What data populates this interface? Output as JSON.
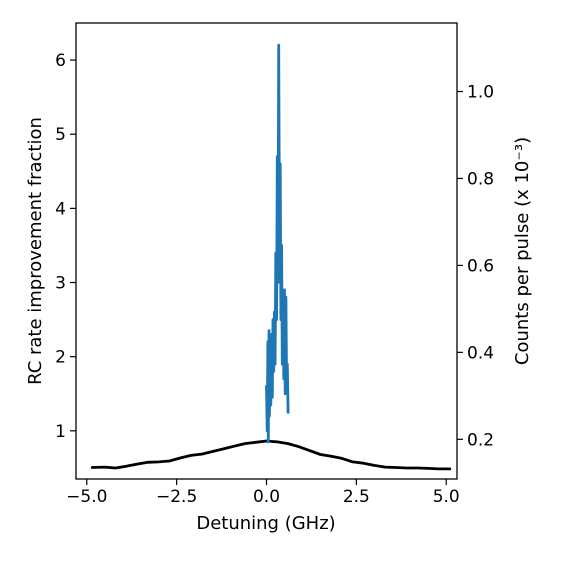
{
  "chart_data": {
    "type": "line",
    "xlabel": "Detuning (GHz)",
    "ylabel_left": "RC rate improvement fraction",
    "ylabel_right": "Counts per pulse (x 10⁻³)",
    "xlim": [
      -5.3,
      5.3
    ],
    "ylim_left": [
      0.35,
      6.5
    ],
    "ylim_right": [
      0.10866,
      1.1576
    ],
    "x_ticks": [
      -5.0,
      -2.5,
      0.0,
      2.5,
      5.0
    ],
    "x_tick_labels": [
      "−5.0",
      "−2.5",
      "0.0",
      "2.5",
      "5.0"
    ],
    "y_left_ticks": [
      1,
      2,
      3,
      4,
      5,
      6
    ],
    "y_left_tick_labels": [
      "1",
      "2",
      "3",
      "4",
      "5",
      "6"
    ],
    "y_right_ticks": [
      0.2,
      0.4,
      0.6,
      0.8,
      1.0
    ],
    "y_right_tick_labels": [
      "0.2",
      "0.4",
      "0.6",
      "0.8",
      "1.0"
    ],
    "grid": false,
    "series": [
      {
        "axis": "right",
        "color": "#000000",
        "x": [
          -4.85,
          -4.5,
          -4.2,
          -3.9,
          -3.6,
          -3.3,
          -3.0,
          -2.7,
          -2.4,
          -2.1,
          -1.8,
          -1.5,
          -1.2,
          -0.9,
          -0.6,
          -0.3,
          0.0,
          0.3,
          0.6,
          0.9,
          1.2,
          1.5,
          1.8,
          2.1,
          2.4,
          2.7,
          3.0,
          3.3,
          3.6,
          3.9,
          4.2,
          4.5,
          4.8,
          5.1
        ],
        "y": [
          0.135,
          0.136,
          0.134,
          0.138,
          0.143,
          0.147,
          0.148,
          0.15,
          0.157,
          0.163,
          0.166,
          0.172,
          0.178,
          0.184,
          0.19,
          0.193,
          0.196,
          0.194,
          0.19,
          0.183,
          0.174,
          0.165,
          0.161,
          0.156,
          0.148,
          0.145,
          0.14,
          0.136,
          0.135,
          0.134,
          0.134,
          0.133,
          0.132,
          0.132
        ]
      },
      {
        "axis": "left",
        "color": "#1f77b4",
        "x": [
          0.0,
          0.02,
          0.04,
          0.05,
          0.07,
          0.08,
          0.1,
          0.12,
          0.14,
          0.16,
          0.18,
          0.2,
          0.22,
          0.24,
          0.26,
          0.28,
          0.3,
          0.32,
          0.34,
          0.36,
          0.38,
          0.4,
          0.42,
          0.44,
          0.46,
          0.48,
          0.5,
          0.52,
          0.54,
          0.56,
          0.58,
          0.6
        ],
        "y": [
          1.6,
          1.0,
          2.2,
          0.85,
          2.35,
          1.2,
          2.1,
          1.35,
          2.3,
          1.45,
          2.5,
          1.8,
          2.6,
          1.9,
          3.4,
          2.5,
          4.7,
          3.0,
          6.2,
          3.8,
          4.6,
          2.5,
          3.5,
          1.9,
          2.9,
          1.7,
          2.9,
          1.5,
          2.8,
          1.6,
          1.9,
          1.25
        ]
      }
    ]
  }
}
